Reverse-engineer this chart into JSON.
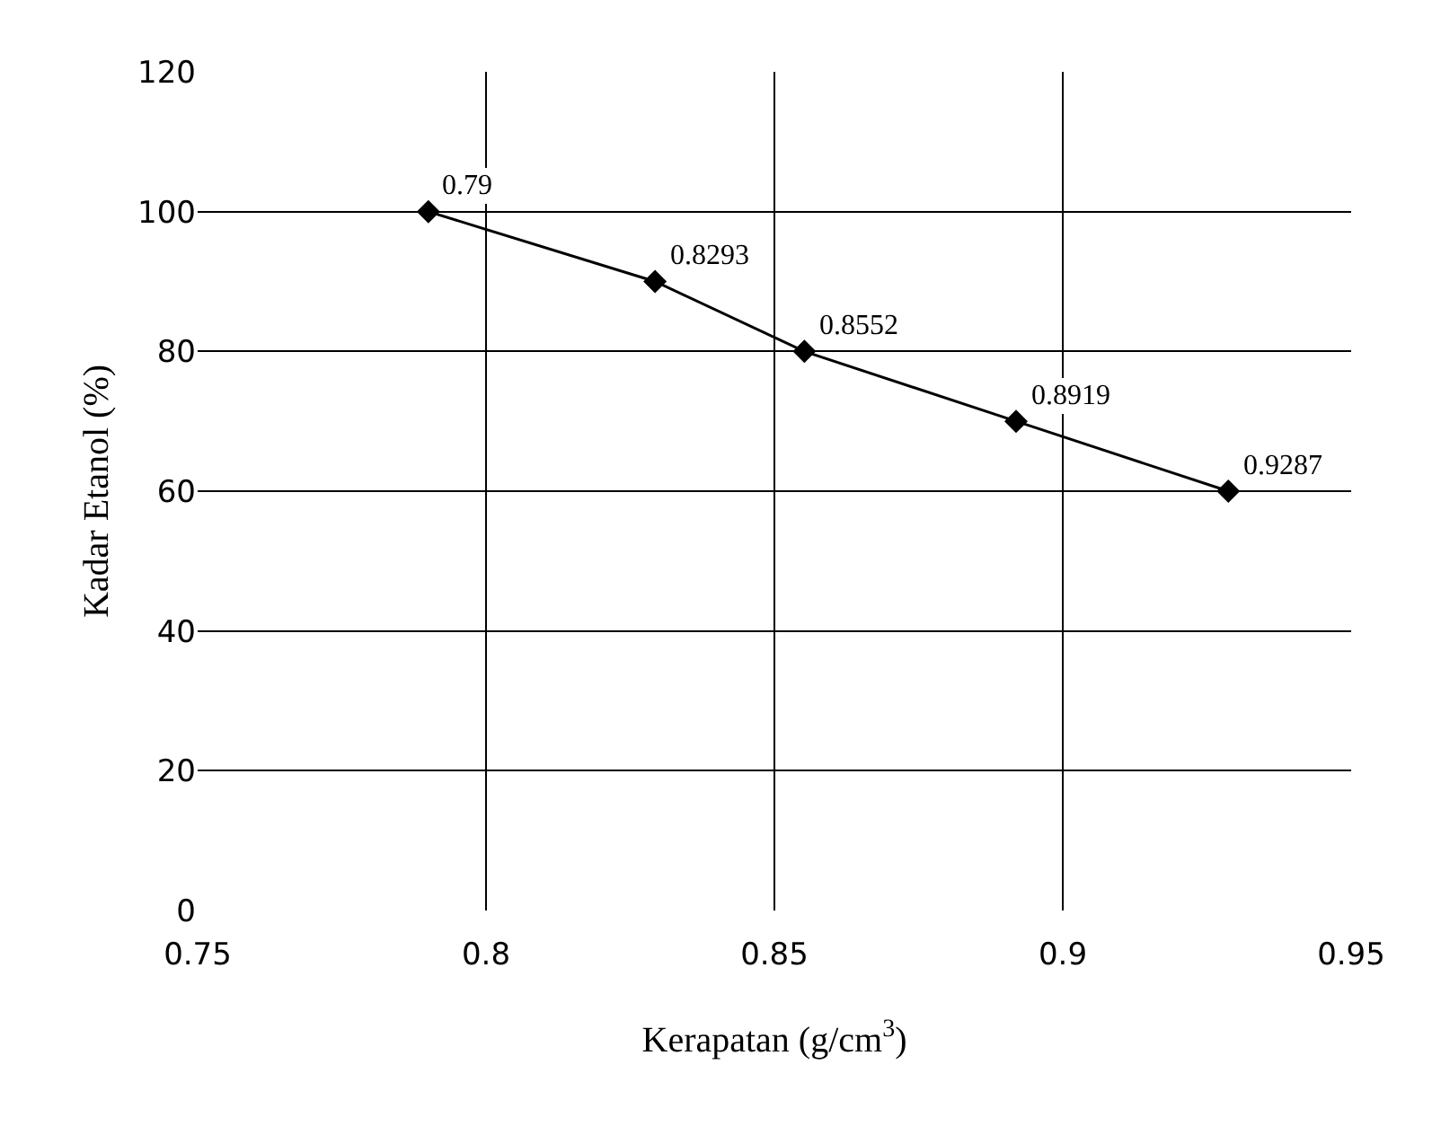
{
  "chart_data": {
    "type": "line",
    "xlabel": "Kerapatan (g/cm$^{3}$)",
    "ylabel": "Kadar Etanol (%)",
    "x": [
      0.79,
      0.8293,
      0.8552,
      0.8919,
      0.9287
    ],
    "series": [
      {
        "color": "#000000",
        "values": [
          100,
          90,
          80,
          70,
          60
        ]
      }
    ],
    "annotations": [
      {
        "text": "0.79",
        "x": 0.79,
        "y": 100
      },
      {
        "text": "0.8293",
        "x": 0.8293,
        "y": 90
      },
      {
        "text": "0.8552",
        "x": 0.8552,
        "y": 80
      },
      {
        "text": "0.8919",
        "x": 0.8919,
        "y": 70
      },
      {
        "text": "0.9287",
        "x": 0.9287,
        "y": 60
      }
    ],
    "xlim": [
      0.75,
      0.95
    ],
    "xticks": [
      0.75,
      0.8,
      0.85,
      0.9,
      0.95
    ],
    "ylim": [
      0,
      120
    ],
    "yticks": [
      0,
      20,
      40,
      60,
      80,
      100,
      120
    ],
    "grid": true,
    "legend": false,
    "marker": "diamond",
    "line_style": "solid"
  }
}
